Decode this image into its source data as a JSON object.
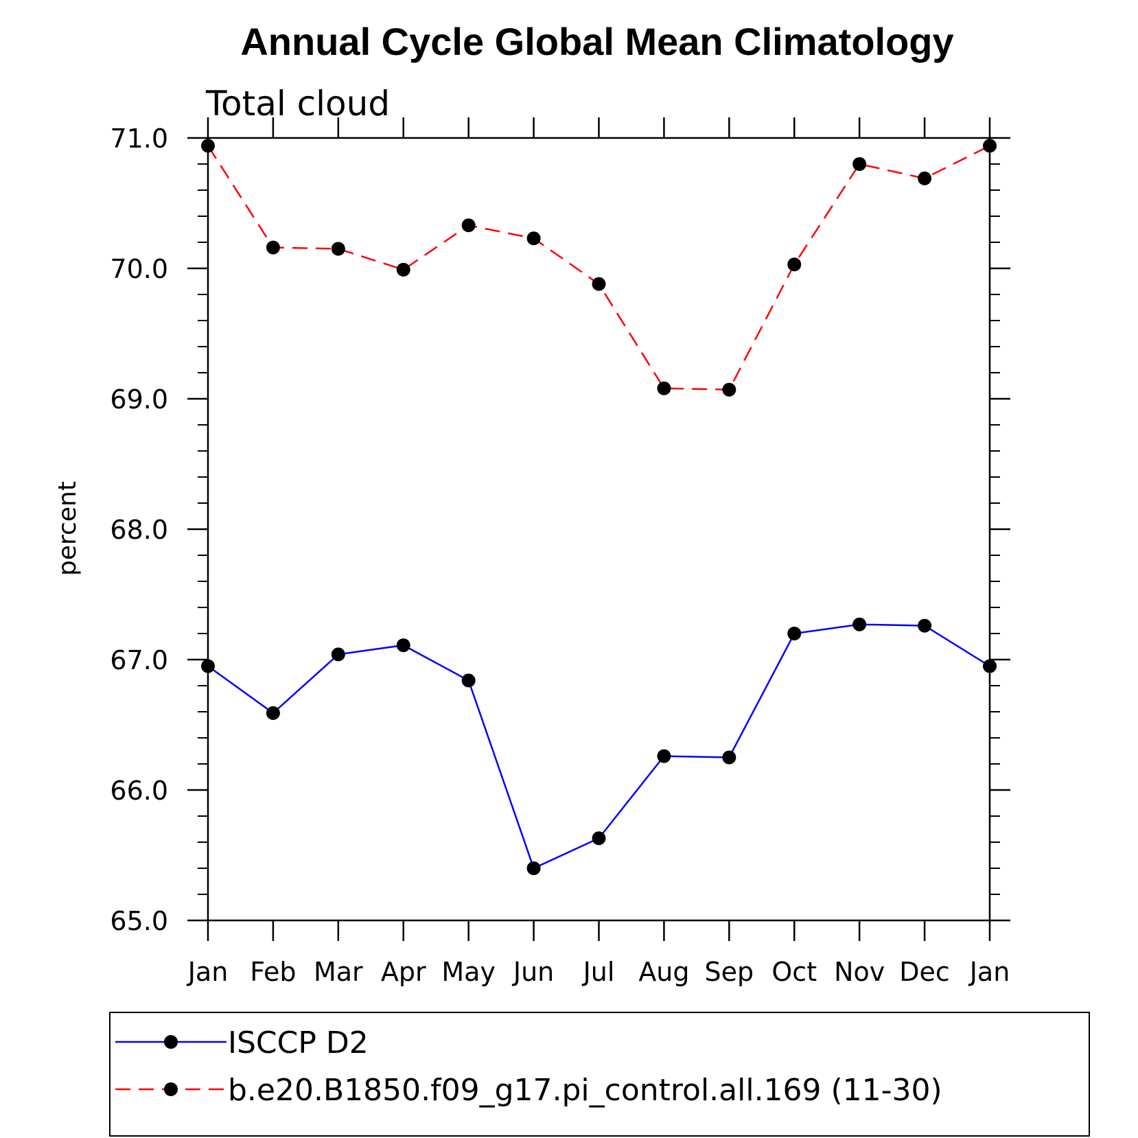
{
  "chart_data": {
    "type": "line",
    "title": "Annual Cycle Global Mean Climatology",
    "subtitle": "Total cloud",
    "xlabel": "",
    "ylabel": "percent",
    "categories": [
      "Jan",
      "Feb",
      "Mar",
      "Apr",
      "May",
      "Jun",
      "Jul",
      "Aug",
      "Sep",
      "Oct",
      "Nov",
      "Dec",
      "Jan"
    ],
    "ylim": [
      65.0,
      71.0
    ],
    "yticks": [
      "65.0",
      "66.0",
      "67.0",
      "68.0",
      "69.0",
      "70.0",
      "71.0"
    ],
    "legend_placement": "bottom",
    "grid": false,
    "series": [
      {
        "name": "ISCCP D2",
        "color": "#0000ff",
        "dash": "solid",
        "values": [
          66.95,
          66.59,
          67.04,
          67.11,
          66.84,
          65.4,
          65.63,
          66.26,
          66.25,
          67.2,
          67.27,
          67.26,
          66.95
        ]
      },
      {
        "name": "b.e20.B1850.f09_g17.pi_control.all.169 (11-30)",
        "color": "#ff0000",
        "dash": "dashed",
        "values": [
          70.94,
          70.16,
          70.15,
          69.99,
          70.33,
          70.23,
          69.88,
          69.08,
          69.07,
          70.03,
          70.8,
          70.69,
          70.94
        ]
      }
    ]
  }
}
